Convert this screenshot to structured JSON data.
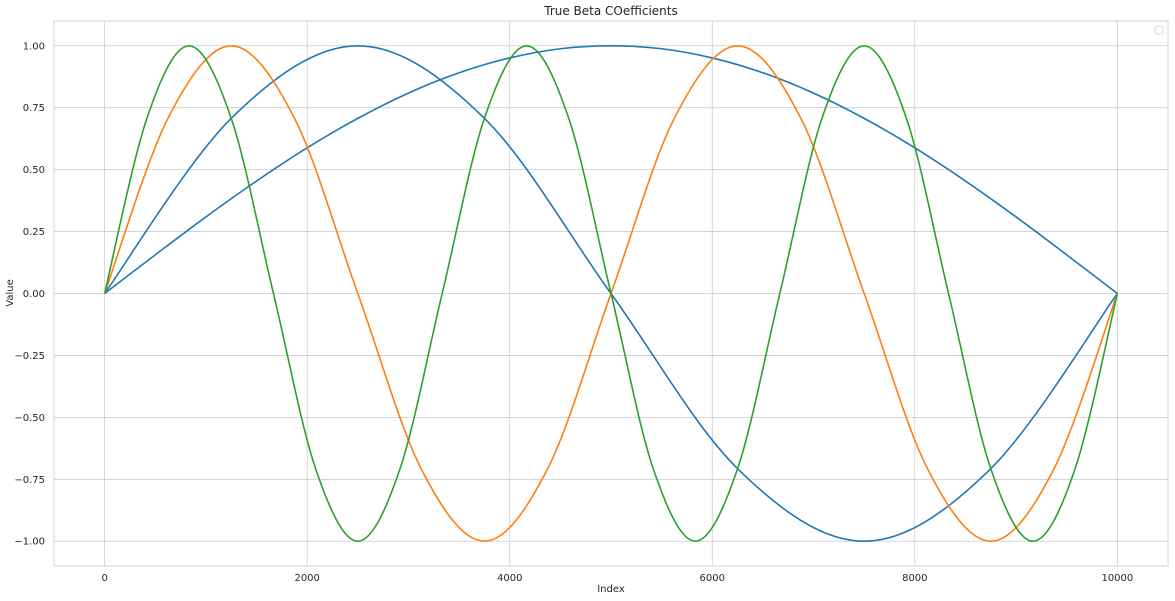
{
  "chart_data": {
    "type": "line",
    "title": "True Beta COefficients",
    "xlabel": "Index",
    "ylabel": "Value",
    "xlim": [
      -500,
      10500
    ],
    "ylim": [
      -1.1,
      1.1
    ],
    "xticks": [
      0,
      2000,
      4000,
      6000,
      8000,
      10000
    ],
    "xtick_labels": [
      "0",
      "2000",
      "4000",
      "6000",
      "8000",
      "10000"
    ],
    "yticks": [
      1.0,
      0.75,
      0.5,
      0.25,
      0.0,
      -0.25,
      -0.5,
      -0.75,
      -1.0
    ],
    "ytick_labels": [
      "1.00",
      "0.75",
      "0.50",
      "0.25",
      "0.00",
      "−0.25",
      "−0.50",
      "−0.75",
      "−1.00"
    ],
    "grid": true,
    "legend": {
      "position": "top-right",
      "entries": []
    },
    "series": [
      {
        "color": "#1f77b4",
        "x": [
          0,
          500,
          1000,
          1500,
          2000,
          2500,
          3000,
          3500,
          4000,
          4500,
          5000,
          5500,
          6000,
          6500,
          7000,
          7500,
          8000,
          8500,
          9000,
          9500,
          10000
        ],
        "y": [
          0.0,
          0.156,
          0.309,
          0.454,
          0.588,
          0.707,
          0.809,
          0.891,
          0.951,
          0.988,
          1.0,
          0.988,
          0.951,
          0.891,
          0.809,
          0.707,
          0.588,
          0.454,
          0.309,
          0.156,
          0.0
        ]
      },
      {
        "color": "#1f77b4",
        "x": [
          0,
          1250,
          2500,
          3750,
          5000,
          6250,
          7500,
          8750,
          10000
        ],
        "y": [
          0.0,
          0.707,
          1.0,
          0.707,
          0.0,
          -0.707,
          -1.0,
          -0.707,
          0.0
        ]
      },
      {
        "color": "#ff7f0e",
        "x": [
          0,
          625,
          1250,
          1875,
          2500,
          3125,
          3750,
          4375,
          5000,
          5625,
          6250,
          6875,
          7500,
          8125,
          8750,
          9375,
          10000
        ],
        "y": [
          0.0,
          0.707,
          1.0,
          0.707,
          0.0,
          -0.707,
          -1.0,
          -0.707,
          0.0,
          0.707,
          1.0,
          0.707,
          0.0,
          -0.707,
          -1.0,
          -0.707,
          0.0
        ]
      },
      {
        "color": "#2ca02c",
        "x": [
          0,
          417,
          833,
          1250,
          1667,
          2083,
          2500,
          2917,
          3333,
          3750,
          4167,
          4583,
          5000,
          5417,
          5833,
          6250,
          6667,
          7083,
          7500,
          7917,
          8333,
          8750,
          9167,
          9583,
          10000
        ],
        "y": [
          0.0,
          0.707,
          1.0,
          0.707,
          0.0,
          -0.707,
          -1.0,
          -0.707,
          0.0,
          0.707,
          1.0,
          0.707,
          0.0,
          -0.707,
          -1.0,
          -0.707,
          0.0,
          0.707,
          1.0,
          0.707,
          0.0,
          -0.707,
          -1.0,
          -0.707,
          0.0
        ]
      }
    ]
  }
}
